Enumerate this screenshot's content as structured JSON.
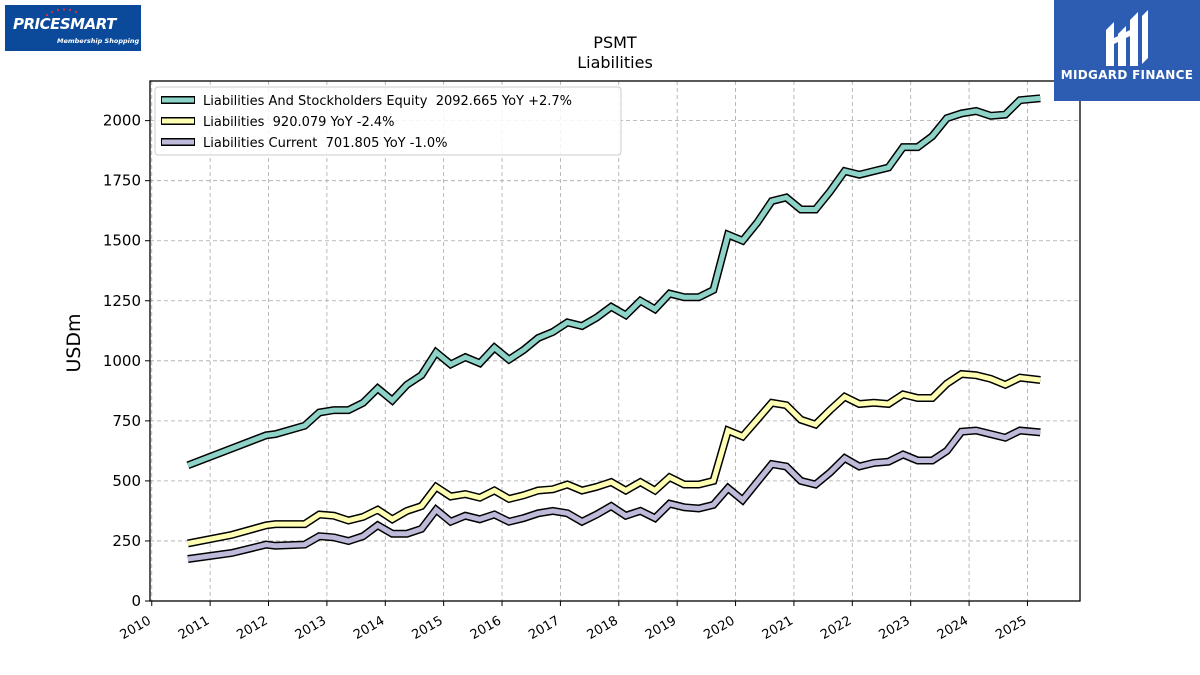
{
  "logos": {
    "left": {
      "name": "PRICESMART",
      "tagline": "Membership Shopping",
      "bg_color": "#0b4a9b"
    },
    "right": {
      "name": "MIDGARD FINANCE",
      "bg_color": "#2d5db2"
    }
  },
  "chart_data": {
    "type": "line",
    "title": "PSMT",
    "subtitle": "Liabilities",
    "xlabel": "",
    "ylabel": "USDm",
    "xlim": [
      2009.97,
      2025.9
    ],
    "ylim": [
      0,
      2165
    ],
    "yticks": [
      0,
      250,
      500,
      750,
      1000,
      1250,
      1500,
      1750,
      2000
    ],
    "xticks": [
      2010,
      2011,
      2012,
      2013,
      2014,
      2015,
      2016,
      2017,
      2018,
      2019,
      2020,
      2021,
      2022,
      2023,
      2024,
      2025
    ],
    "grid": true,
    "legend_position": "top-left",
    "series": [
      {
        "name": "Liabilities And Stockholders Equity  2092.665 YoY +2.7%",
        "color": "#8dd3c7",
        "points": [
          [
            2010.62,
            565
          ],
          [
            2011.37,
            635
          ],
          [
            2011.96,
            690
          ],
          [
            2012.12,
            695
          ],
          [
            2012.62,
            730
          ],
          [
            2012.87,
            785
          ],
          [
            2013.12,
            795
          ],
          [
            2013.37,
            795
          ],
          [
            2013.62,
            825
          ],
          [
            2013.87,
            885
          ],
          [
            2014.12,
            835
          ],
          [
            2014.37,
            900
          ],
          [
            2014.62,
            940
          ],
          [
            2014.87,
            1035
          ],
          [
            2015.12,
            985
          ],
          [
            2015.37,
            1015
          ],
          [
            2015.62,
            990
          ],
          [
            2015.87,
            1055
          ],
          [
            2016.12,
            1005
          ],
          [
            2016.37,
            1045
          ],
          [
            2016.62,
            1095
          ],
          [
            2016.87,
            1120
          ],
          [
            2017.12,
            1160
          ],
          [
            2017.37,
            1145
          ],
          [
            2017.62,
            1180
          ],
          [
            2017.87,
            1225
          ],
          [
            2018.12,
            1190
          ],
          [
            2018.37,
            1250
          ],
          [
            2018.62,
            1215
          ],
          [
            2018.87,
            1280
          ],
          [
            2019.12,
            1265
          ],
          [
            2019.37,
            1265
          ],
          [
            2019.62,
            1295
          ],
          [
            2019.87,
            1525
          ],
          [
            2020.12,
            1500
          ],
          [
            2020.37,
            1575
          ],
          [
            2020.62,
            1665
          ],
          [
            2020.87,
            1680
          ],
          [
            2021.12,
            1630
          ],
          [
            2021.37,
            1630
          ],
          [
            2021.62,
            1705
          ],
          [
            2021.87,
            1790
          ],
          [
            2022.12,
            1775
          ],
          [
            2022.37,
            1790
          ],
          [
            2022.62,
            1805
          ],
          [
            2022.87,
            1890
          ],
          [
            2023.12,
            1890
          ],
          [
            2023.37,
            1935
          ],
          [
            2023.62,
            2010
          ],
          [
            2023.87,
            2030
          ],
          [
            2024.12,
            2040
          ],
          [
            2024.37,
            2020
          ],
          [
            2024.62,
            2025
          ],
          [
            2024.87,
            2085
          ],
          [
            2025.22,
            2093
          ]
        ]
      },
      {
        "name": "Liabilities  920.079 YoY -2.4%",
        "color": "#ffffb3",
        "points": [
          [
            2010.62,
            240
          ],
          [
            2011.37,
            275
          ],
          [
            2011.96,
            315
          ],
          [
            2012.12,
            320
          ],
          [
            2012.62,
            320
          ],
          [
            2012.87,
            360
          ],
          [
            2013.12,
            355
          ],
          [
            2013.37,
            335
          ],
          [
            2013.62,
            350
          ],
          [
            2013.87,
            380
          ],
          [
            2014.12,
            340
          ],
          [
            2014.37,
            375
          ],
          [
            2014.62,
            395
          ],
          [
            2014.87,
            475
          ],
          [
            2015.12,
            435
          ],
          [
            2015.37,
            445
          ],
          [
            2015.62,
            430
          ],
          [
            2015.87,
            460
          ],
          [
            2016.12,
            425
          ],
          [
            2016.37,
            440
          ],
          [
            2016.62,
            460
          ],
          [
            2016.87,
            465
          ],
          [
            2017.12,
            485
          ],
          [
            2017.37,
            460
          ],
          [
            2017.62,
            475
          ],
          [
            2017.87,
            495
          ],
          [
            2018.12,
            460
          ],
          [
            2018.37,
            495
          ],
          [
            2018.62,
            460
          ],
          [
            2018.87,
            515
          ],
          [
            2019.12,
            485
          ],
          [
            2019.37,
            485
          ],
          [
            2019.62,
            500
          ],
          [
            2019.87,
            710
          ],
          [
            2020.12,
            685
          ],
          [
            2020.37,
            755
          ],
          [
            2020.62,
            825
          ],
          [
            2020.87,
            815
          ],
          [
            2021.12,
            755
          ],
          [
            2021.37,
            735
          ],
          [
            2021.62,
            795
          ],
          [
            2021.87,
            850
          ],
          [
            2022.12,
            820
          ],
          [
            2022.37,
            825
          ],
          [
            2022.62,
            820
          ],
          [
            2022.87,
            860
          ],
          [
            2023.12,
            845
          ],
          [
            2023.37,
            845
          ],
          [
            2023.62,
            905
          ],
          [
            2023.87,
            945
          ],
          [
            2024.12,
            940
          ],
          [
            2024.37,
            925
          ],
          [
            2024.62,
            900
          ],
          [
            2024.87,
            930
          ],
          [
            2025.22,
            920
          ]
        ]
      },
      {
        "name": "Liabilities Current  701.805 YoY -1.0%",
        "color": "#bebada",
        "points": [
          [
            2010.62,
            175
          ],
          [
            2011.37,
            200
          ],
          [
            2011.96,
            235
          ],
          [
            2012.12,
            230
          ],
          [
            2012.62,
            235
          ],
          [
            2012.87,
            270
          ],
          [
            2013.12,
            265
          ],
          [
            2013.37,
            250
          ],
          [
            2013.62,
            270
          ],
          [
            2013.87,
            315
          ],
          [
            2014.12,
            280
          ],
          [
            2014.37,
            280
          ],
          [
            2014.62,
            300
          ],
          [
            2014.87,
            380
          ],
          [
            2015.12,
            330
          ],
          [
            2015.37,
            355
          ],
          [
            2015.62,
            340
          ],
          [
            2015.87,
            360
          ],
          [
            2016.12,
            330
          ],
          [
            2016.37,
            345
          ],
          [
            2016.62,
            365
          ],
          [
            2016.87,
            375
          ],
          [
            2017.12,
            365
          ],
          [
            2017.37,
            330
          ],
          [
            2017.62,
            360
          ],
          [
            2017.87,
            395
          ],
          [
            2018.12,
            355
          ],
          [
            2018.37,
            375
          ],
          [
            2018.62,
            345
          ],
          [
            2018.87,
            405
          ],
          [
            2019.12,
            390
          ],
          [
            2019.37,
            385
          ],
          [
            2019.62,
            400
          ],
          [
            2019.87,
            470
          ],
          [
            2020.12,
            420
          ],
          [
            2020.37,
            495
          ],
          [
            2020.62,
            570
          ],
          [
            2020.87,
            560
          ],
          [
            2021.12,
            500
          ],
          [
            2021.37,
            485
          ],
          [
            2021.62,
            535
          ],
          [
            2021.87,
            595
          ],
          [
            2022.12,
            560
          ],
          [
            2022.37,
            575
          ],
          [
            2022.62,
            580
          ],
          [
            2022.87,
            610
          ],
          [
            2023.12,
            585
          ],
          [
            2023.37,
            585
          ],
          [
            2023.62,
            625
          ],
          [
            2023.87,
            705
          ],
          [
            2024.12,
            710
          ],
          [
            2024.37,
            695
          ],
          [
            2024.62,
            680
          ],
          [
            2024.87,
            710
          ],
          [
            2025.22,
            702
          ]
        ]
      }
    ]
  }
}
